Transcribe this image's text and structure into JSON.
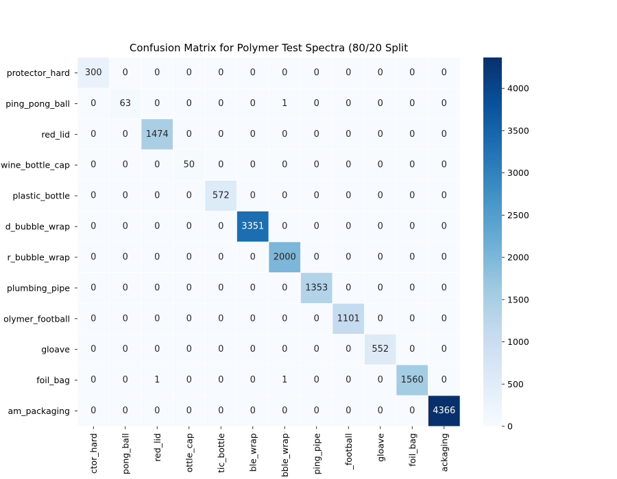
{
  "chart_data": {
    "type": "heatmap",
    "title": "Confusion Matrix for Polymer Test Spectra (80/20 Split",
    "row_labels": [
      "protector_hard",
      "ping_pong_ball",
      "red_lid",
      "wine_bottle_cap",
      "plastic_bottle",
      "d_bubble_wrap",
      "r_bubble_wrap",
      "plumbing_pipe",
      "olymer_football",
      "gloave",
      "foil_bag",
      "am_packaging"
    ],
    "col_labels": [
      "ctor_hard",
      "pong_ball",
      "red_lid",
      "ottle_cap",
      "tic_bottle",
      "ble_wrap",
      "bble_wrap",
      "ping_pipe",
      "_football",
      "gloave",
      "foil_bag",
      "ackaging"
    ],
    "values": [
      [
        300,
        0,
        0,
        0,
        0,
        0,
        0,
        0,
        0,
        0,
        0,
        0
      ],
      [
        0,
        63,
        0,
        0,
        0,
        0,
        1,
        0,
        0,
        0,
        0,
        0
      ],
      [
        0,
        0,
        1474,
        0,
        0,
        0,
        0,
        0,
        0,
        0,
        0,
        0
      ],
      [
        0,
        0,
        0,
        50,
        0,
        0,
        0,
        0,
        0,
        0,
        0,
        0
      ],
      [
        0,
        0,
        0,
        0,
        572,
        0,
        0,
        0,
        0,
        0,
        0,
        0
      ],
      [
        0,
        0,
        0,
        0,
        0,
        3351,
        0,
        0,
        0,
        0,
        0,
        0
      ],
      [
        0,
        0,
        0,
        0,
        0,
        0,
        2000,
        0,
        0,
        0,
        0,
        0
      ],
      [
        0,
        0,
        0,
        0,
        0,
        0,
        0,
        1353,
        0,
        0,
        0,
        0
      ],
      [
        0,
        0,
        0,
        0,
        0,
        0,
        0,
        0,
        1101,
        0,
        0,
        0
      ],
      [
        0,
        0,
        0,
        0,
        0,
        0,
        0,
        0,
        0,
        552,
        0,
        0
      ],
      [
        0,
        0,
        1,
        0,
        0,
        0,
        1,
        0,
        0,
        0,
        1560,
        0
      ],
      [
        0,
        0,
        0,
        0,
        0,
        0,
        0,
        0,
        0,
        0,
        0,
        4366
      ]
    ],
    "vmin": 0,
    "vmax": 4366,
    "colormap": "Blues",
    "colorbar_ticks": [
      0,
      500,
      1000,
      1500,
      2000,
      2500,
      3000,
      3500,
      4000
    ],
    "grid": false
  }
}
